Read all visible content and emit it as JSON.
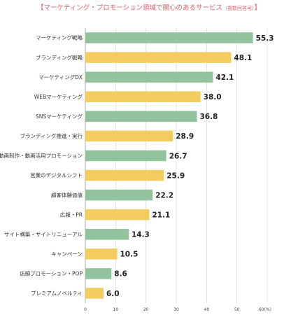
{
  "chart_data": {
    "type": "bar",
    "orientation": "horizontal",
    "title": "【マーケティング・プロモーション領域で関心のあるサービス",
    "subtitle": "（複数回答可）",
    "title_end": "】",
    "categories": [
      "マーケティング戦略",
      "ブランディング戦略",
      "マーケティングDX",
      "WEBマーケティング",
      "SNSマーケティング",
      "ブランディング推進・実行",
      "動画制作・動画活用プロモーション",
      "営業のデジタルシフト",
      "顧客体験価値",
      "広報・PR",
      "サイト構築・サイトリニューアル",
      "キャンペーン",
      "店頭プロモーション・POP",
      "プレミアムノベルティ"
    ],
    "values": [
      55.3,
      48.1,
      42.1,
      38.0,
      36.8,
      28.9,
      26.7,
      25.9,
      22.2,
      21.1,
      14.3,
      10.5,
      8.6,
      6.0
    ],
    "value_labels": [
      "55.3",
      "48.1",
      "42.1",
      "38.0",
      "36.8",
      "28.9",
      "26.7",
      "25.9",
      "22.2",
      "21.1",
      "14.3",
      "10.5",
      "8.6",
      "6.0"
    ],
    "xticks": [
      "0",
      "10",
      "20",
      "30",
      "40",
      "50",
      "60(%)"
    ],
    "xlim": [
      0,
      60
    ],
    "grid": true,
    "colors": {
      "green": "#91c49d",
      "yellow": "#f2cc61",
      "grid": "#dddddd",
      "axis": "#999999",
      "title": "#e4606d"
    },
    "color_pattern": [
      "green",
      "yellow"
    ]
  }
}
